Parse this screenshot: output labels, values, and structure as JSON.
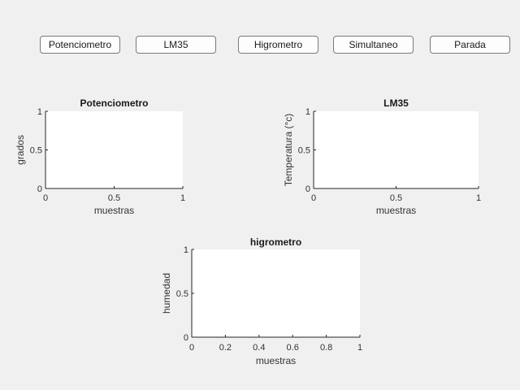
{
  "buttons": {
    "potenciometro": "Potenciometro",
    "lm35": "LM35",
    "higrometro": "Higrometro",
    "simultaneo": "Simultaneo",
    "parada": "Parada"
  },
  "chart_data": [
    {
      "type": "line",
      "title": "Potenciometro",
      "xlabel": "muestras",
      "ylabel": "grados",
      "xlim": [
        0,
        1
      ],
      "ylim": [
        0,
        1
      ],
      "xticks": [
        "0",
        "0.5",
        "1"
      ],
      "yticks": [
        "0",
        "0.5",
        "1"
      ],
      "series": []
    },
    {
      "type": "line",
      "title": "LM35",
      "xlabel": "muestras",
      "ylabel": "Temperatura (°c)",
      "xlim": [
        0,
        1
      ],
      "ylim": [
        0,
        1
      ],
      "xticks": [
        "0",
        "0.5",
        "1"
      ],
      "yticks": [
        "0",
        "0.5",
        "1"
      ],
      "series": []
    },
    {
      "type": "line",
      "title": "higrometro",
      "xlabel": "muestras",
      "ylabel": "humedad",
      "xlim": [
        0,
        1
      ],
      "ylim": [
        0,
        1
      ],
      "xticks": [
        "0",
        "0.2",
        "0.4",
        "0.6",
        "0.8",
        "1"
      ],
      "yticks": [
        "0",
        "0.5",
        "1"
      ],
      "series": []
    }
  ]
}
